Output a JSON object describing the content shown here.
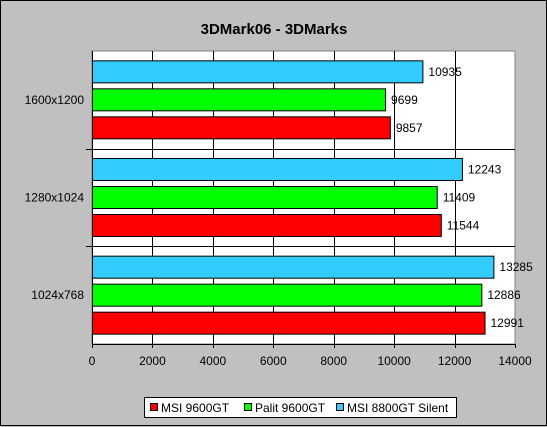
{
  "chart_data": {
    "type": "bar",
    "orientation": "horizontal",
    "title": "3DMark06 - 3DMarks",
    "categories": [
      "1600x1200",
      "1280x1024",
      "1024x768"
    ],
    "series": [
      {
        "name": "MSI 8800GT Silent",
        "color": "#33ccff",
        "values": [
          10935,
          12243,
          13285
        ]
      },
      {
        "name": "Palit 9600GT",
        "color": "#00ff00",
        "values": [
          9699,
          11409,
          12886
        ]
      },
      {
        "name": "MSI 9600GT",
        "color": "#ff0000",
        "values": [
          9857,
          11544,
          12991
        ]
      }
    ],
    "legend_order": [
      "MSI 9600GT",
      "Palit 9600GT",
      "MSI 8800GT Silent"
    ],
    "x_ticks": [
      "0",
      "2000",
      "4000",
      "6000",
      "8000",
      "10000",
      "12000",
      "14000"
    ],
    "xlim": [
      0,
      14000
    ],
    "xlabel": "",
    "ylabel": "",
    "grid": "vertical",
    "legend_position": "bottom",
    "plot_background": "#ffffff"
  }
}
